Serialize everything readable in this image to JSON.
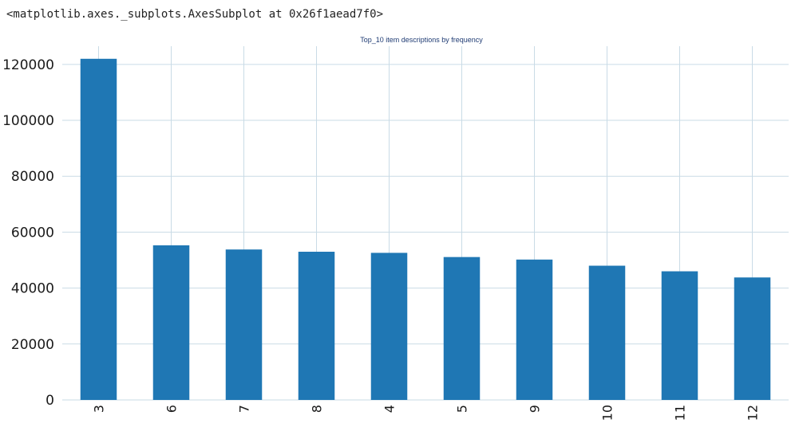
{
  "output": {
    "repr_text": "<matplotlib.axes._subplots.AxesSubplot at 0x26f1aead7f0>"
  },
  "chart_data": {
    "type": "bar",
    "title": "Top_10 item descriptions by frequency",
    "xlabel": "",
    "ylabel": "",
    "categories": [
      "3",
      "6",
      "7",
      "8",
      "4",
      "5",
      "9",
      "10",
      "11",
      "12"
    ],
    "values": [
      122000,
      55300,
      53800,
      53000,
      52600,
      51100,
      50200,
      48000,
      46000,
      43800
    ],
    "ylim": [
      0,
      126500
    ],
    "yticks": [
      0,
      20000,
      40000,
      60000,
      80000,
      100000,
      120000
    ],
    "ytick_labels": [
      "0",
      "20000",
      "40000",
      "60000",
      "80000",
      "100000",
      "120000"
    ],
    "grid": true,
    "legend": "none",
    "colors": {
      "bar": "#1f77b4",
      "grid": "#c9dbe6",
      "title": "#1f3b73"
    }
  }
}
